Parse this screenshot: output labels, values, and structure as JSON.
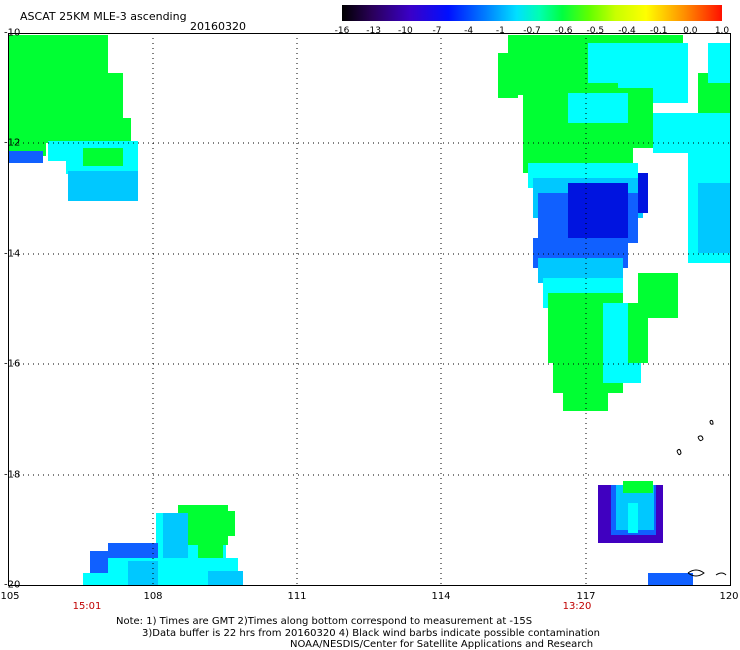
{
  "header": {
    "title": "ASCAT 25KM MLE-3 ascending",
    "date": "20160320"
  },
  "colorbar": {
    "labels": [
      "-16",
      "-13",
      "-10",
      "-7",
      "-4",
      "-1",
      "-0.7",
      "-0.6",
      "-0.5",
      "-0.4",
      "-0.1",
      "0.0",
      "1.0"
    ]
  },
  "axes": {
    "y_labels": [
      "-10",
      "-12",
      "-14",
      "-16",
      "-18",
      "-20"
    ],
    "x_labels": [
      "105",
      "108",
      "111",
      "114",
      "117",
      "120"
    ],
    "times": [
      "15:01",
      "13:20"
    ]
  },
  "notes": {
    "line1": "Note: 1) Times are GMT 2)Times along bottom correspond to measurement at -15S",
    "line2": "3)Data buffer is 22 hrs from 20160320 4) Black wind barbs indicate possible contamination",
    "line3": "NOAA/NESDIS/Center for Satellite Applications and Research"
  },
  "colors": {
    "green": "#00ff33",
    "cyan": "#00ffff",
    "lightblue": "#00c8ff",
    "blue": "#1060ff",
    "darkblue": "#0014e0",
    "purple": "#4000c0"
  }
}
